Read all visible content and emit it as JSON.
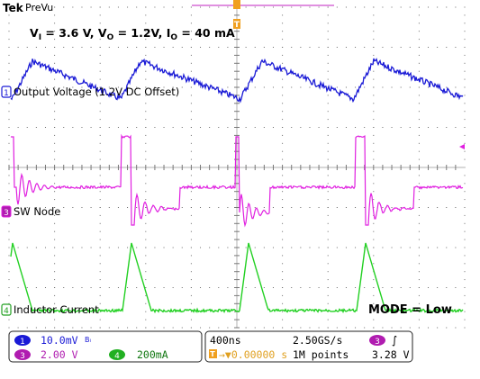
{
  "header": {
    "brand": "Tek",
    "mode": "PreVu"
  },
  "conditions": {
    "vi_sym": "V",
    "vi_sub": "I",
    "vi_val": " = 3.6 V, ",
    "vo_sym": "V",
    "vo_sub": "O",
    "vo_val": " = 1.2V, ",
    "io_sym": "I",
    "io_sub": "O",
    "io_val": " = 40 mA"
  },
  "channels": [
    {
      "id": "1",
      "label": "Output Voltage (1.2V DC Offset)",
      "color": "#1a1ad6"
    },
    {
      "id": "3",
      "label": "SW Node",
      "color": "#e020e0"
    },
    {
      "id": "4",
      "label": "Inductor Current",
      "color": "#22d022"
    }
  ],
  "trigger": {
    "marker": "T"
  },
  "annotation": {
    "mode_text": "MODE = Low"
  },
  "status": {
    "ch1_id": "1",
    "ch1_scale": "10.0mV",
    "ch1_bw": "Bₗ",
    "ch3_id": "3",
    "ch3_scale": "2.00 V",
    "ch4_id": "4",
    "ch4_scale": "200mA",
    "timebase": "400ns",
    "sample_rate": "2.50GS/s",
    "trig_ch": "3",
    "trig_slope": "∫",
    "position": "→▼0.00000 s",
    "record_length": "1M points",
    "trig_level": "3.28 V"
  }
}
